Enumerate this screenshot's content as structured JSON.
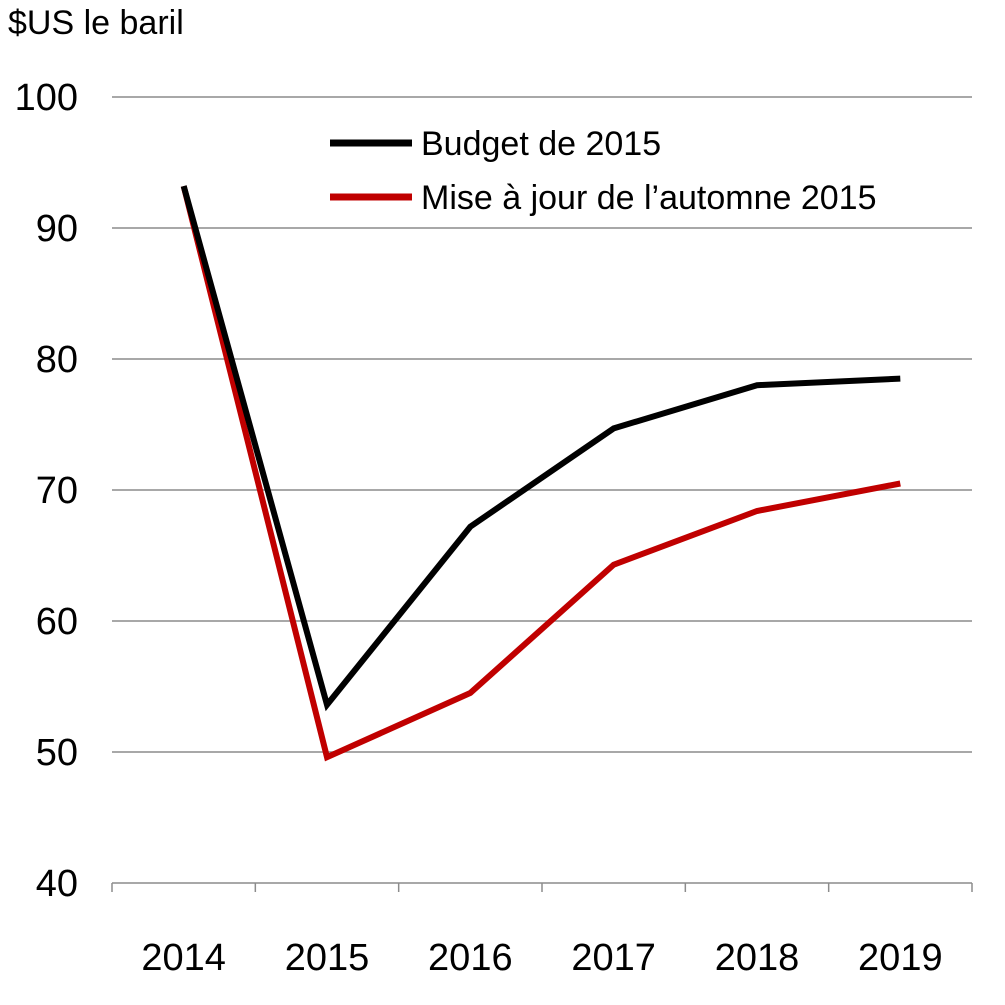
{
  "chart_data": {
    "type": "line",
    "ylabel": "$US le baril",
    "categories": [
      "2014",
      "2015",
      "2016",
      "2017",
      "2018",
      "2019"
    ],
    "ylim": [
      40,
      100
    ],
    "yticks": [
      40,
      50,
      60,
      70,
      80,
      90,
      100
    ],
    "grid": true,
    "legend_position": "top-right",
    "series": [
      {
        "name": "Budget de 2015",
        "color": "#000000",
        "values": [
          93.2,
          53.6,
          67.2,
          74.7,
          78.0,
          78.5
        ]
      },
      {
        "name": "Mise à jour de l’automne 2015",
        "color": "#c00000",
        "values": [
          93.2,
          49.6,
          54.5,
          64.3,
          68.4,
          70.5
        ]
      }
    ]
  }
}
